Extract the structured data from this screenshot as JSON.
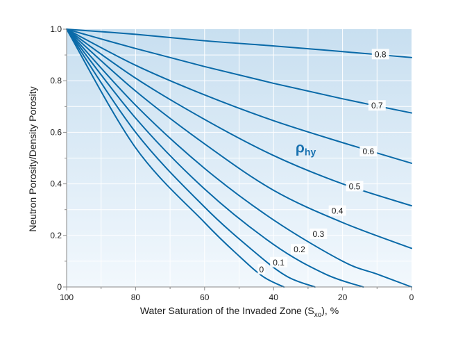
{
  "chart_data": {
    "type": "line",
    "xlabel": "Water Saturation of the Invaded Zone (S",
    "xlabel_sub": "xo",
    "xlabel_suffix": "), %",
    "ylabel": "Neutron Porosity/Density Porosity",
    "xlim": [
      100,
      0
    ],
    "ylim": [
      0,
      1.0
    ],
    "x_ticks": [
      "100",
      "80",
      "60",
      "40",
      "20",
      "0"
    ],
    "y_ticks": [
      "0",
      "0.2",
      "0.4",
      "0.6",
      "0.8",
      "1.0"
    ],
    "grid": true,
    "annotation": {
      "main": "ρ",
      "sub": "hy"
    },
    "colors": {
      "curve": "#0a6aa8",
      "background_top": "#c8dff0",
      "background_bottom": "#f2f8fd",
      "grid": "#ffffff",
      "annotation": "#1a72b0"
    },
    "series": [
      {
        "name": "0.8",
        "x": [
          100,
          80,
          60,
          40,
          20,
          0
        ],
        "y": [
          1.0,
          0.98,
          0.955,
          0.935,
          0.913,
          0.89
        ]
      },
      {
        "name": "0.7",
        "x": [
          100,
          80,
          60,
          40,
          20,
          0
        ],
        "y": [
          1.0,
          0.925,
          0.855,
          0.79,
          0.73,
          0.675
        ]
      },
      {
        "name": "0.6",
        "x": [
          100,
          80,
          60,
          40,
          20,
          0
        ],
        "y": [
          1.0,
          0.86,
          0.745,
          0.645,
          0.56,
          0.48
        ]
      },
      {
        "name": "0.5",
        "x": [
          100,
          80,
          60,
          40,
          20,
          0
        ],
        "y": [
          1.0,
          0.81,
          0.65,
          0.51,
          0.4,
          0.315
        ]
      },
      {
        "name": "0.4",
        "x": [
          100,
          80,
          60,
          40,
          20,
          0
        ],
        "y": [
          1.0,
          0.76,
          0.555,
          0.375,
          0.25,
          0.15
        ]
      },
      {
        "name": "0.3",
        "x": [
          100,
          80,
          60,
          40,
          20,
          10,
          0
        ],
        "y": [
          1.0,
          0.705,
          0.46,
          0.26,
          0.1,
          0.05,
          0.0
        ]
      },
      {
        "name": "0.2",
        "x": [
          100,
          80,
          60,
          40,
          25,
          14
        ],
        "y": [
          1.0,
          0.655,
          0.38,
          0.165,
          0.05,
          0.0
        ]
      },
      {
        "name": "0.1",
        "x": [
          100,
          80,
          60,
          45,
          36,
          28
        ],
        "y": [
          1.0,
          0.6,
          0.31,
          0.13,
          0.04,
          0.0
        ]
      },
      {
        "name": "0",
        "x": [
          100,
          80,
          60,
          50,
          43,
          37
        ],
        "y": [
          1.0,
          0.54,
          0.25,
          0.12,
          0.04,
          0.0
        ]
      }
    ],
    "curve_labels": [
      {
        "text": "0.8",
        "x": 9,
        "y": 0.902
      },
      {
        "text": "0.7",
        "x": 10,
        "y": 0.703
      },
      {
        "text": "0.6",
        "x": 12.5,
        "y": 0.525
      },
      {
        "text": "0.5",
        "x": 16.5,
        "y": 0.39
      },
      {
        "text": "0.4",
        "x": 21.5,
        "y": 0.295
      },
      {
        "text": "0.3",
        "x": 27,
        "y": 0.205
      },
      {
        "text": "0.2",
        "x": 32.5,
        "y": 0.145
      },
      {
        "text": "0.1",
        "x": 38.5,
        "y": 0.095
      },
      {
        "text": "0",
        "x": 43.5,
        "y": 0.068
      }
    ],
    "annotation_pos": {
      "x": 30,
      "y": 0.54
    }
  }
}
